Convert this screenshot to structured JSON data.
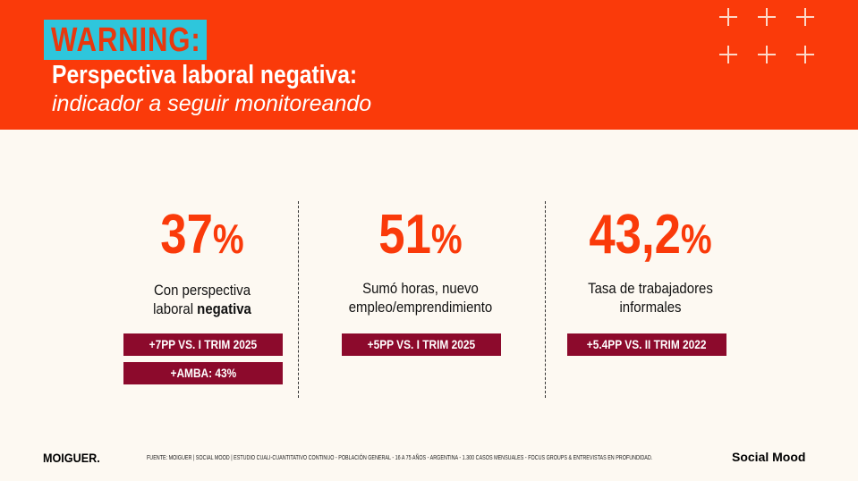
{
  "header": {
    "warning": "WARNING:",
    "title": "Perspectiva laboral negativa:",
    "subtitle": "indicador a seguir monitoreando"
  },
  "colors": {
    "accent": "#fa3a0a",
    "warning_bg": "#2ec6dc",
    "badge": "#8c0a2c",
    "background": "#fdf9f2"
  },
  "stats": [
    {
      "value": "37",
      "unit": "%",
      "desc_line1": "Con perspectiva",
      "desc_line2": "laboral ",
      "desc_bold": "negativa",
      "badges": [
        "+7PP VS. I TRIM 2025",
        "+AMBA: 43%"
      ]
    },
    {
      "value": "51",
      "unit": "%",
      "desc_line1": "Sumó horas, nuevo",
      "desc_line2": "empleo/emprendimiento",
      "badges": [
        "+5PP VS. I TRIM 2025"
      ]
    },
    {
      "value": "43,2",
      "unit": "%",
      "desc_line1": "Tasa de trabajadores",
      "desc_line2": "informales",
      "badges": [
        "+5.4PP VS. II TRIM 2022"
      ]
    }
  ],
  "footer": {
    "logo": "MOIGUER.",
    "source": "FUENTE:  MOIGUER | SOCIAL MOOD | ESTUDIO CUALI-CUANTITATIVO CONTINUO - POBLACIÓN GENERAL - 16 A 75 AÑOS - ARGENTINA -  1.300 CASOS MENSUALES - FOCUS GROUPS & ENTREVISTAS EN PROFUNDIDAD.",
    "brand": "Social Mood"
  }
}
